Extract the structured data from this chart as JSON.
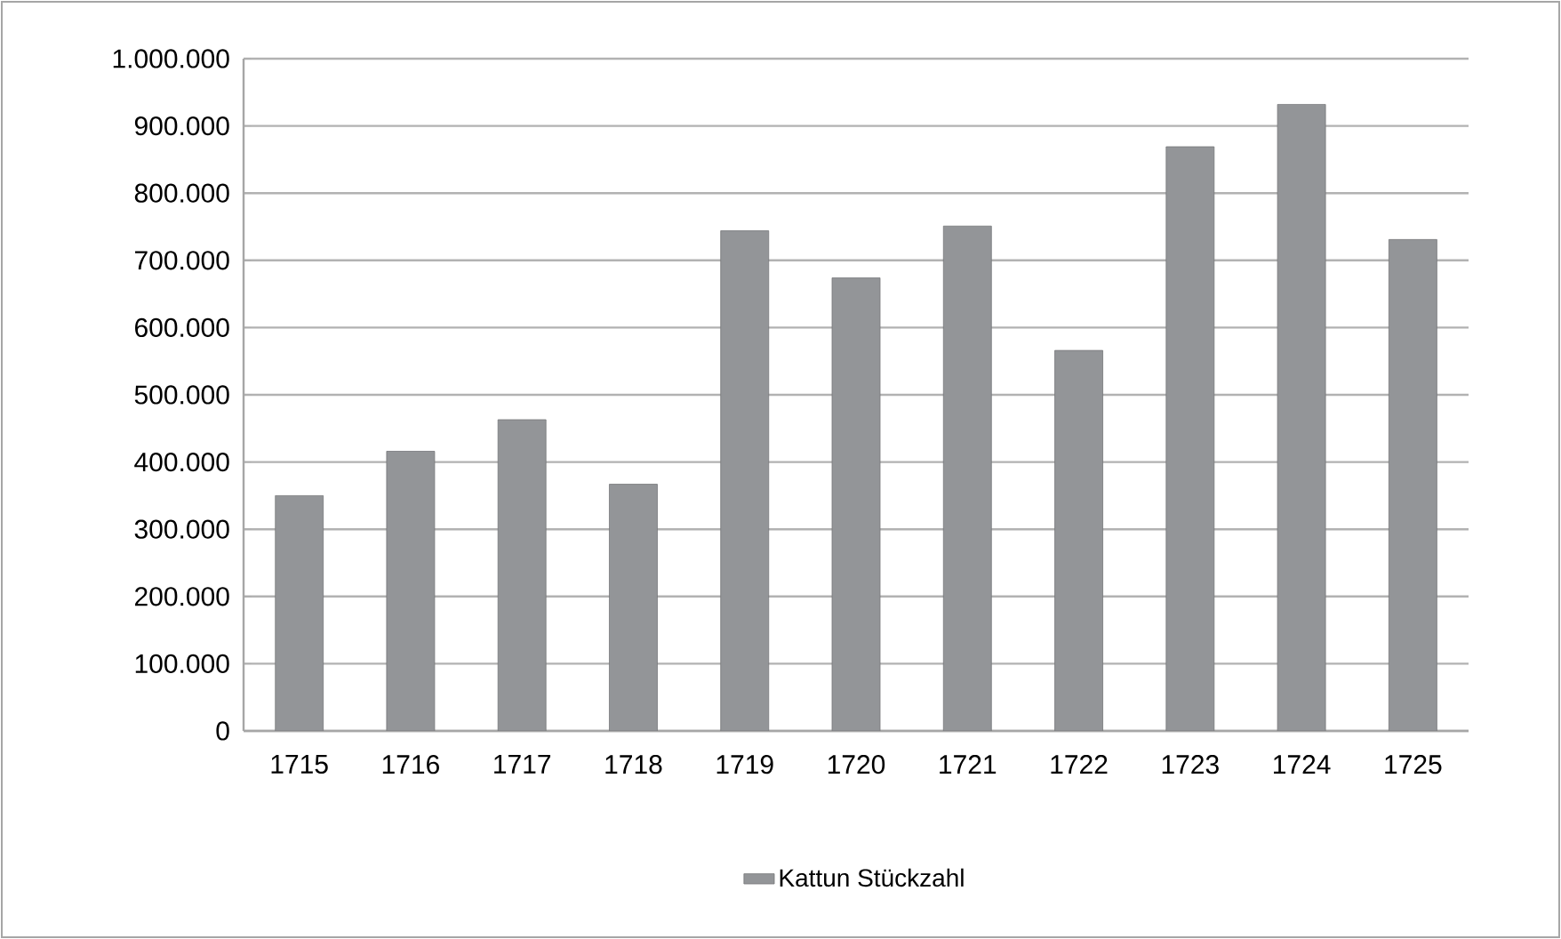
{
  "chart_data": {
    "type": "bar",
    "categories": [
      "1715",
      "1716",
      "1717",
      "1718",
      "1719",
      "1720",
      "1721",
      "1722",
      "1723",
      "1724",
      "1725"
    ],
    "series": [
      {
        "name": "Kattun Stückzahl",
        "color": "#939598",
        "values": [
          350000,
          416000,
          463000,
          367000,
          744000,
          674000,
          751000,
          566000,
          869000,
          932000,
          731000
        ]
      }
    ],
    "ylim": [
      0,
      1000000
    ],
    "yticks": [
      {
        "value": 0,
        "label": "0"
      },
      {
        "value": 100000,
        "label": "100.000"
      },
      {
        "value": 200000,
        "label": "200.000"
      },
      {
        "value": 300000,
        "label": "300.000"
      },
      {
        "value": 400000,
        "label": "400.000"
      },
      {
        "value": 500000,
        "label": "500.000"
      },
      {
        "value": 600000,
        "label": "600.000"
      },
      {
        "value": 700000,
        "label": "700.000"
      },
      {
        "value": 800000,
        "label": "800.000"
      },
      {
        "value": 900000,
        "label": "900.000"
      },
      {
        "value": 1000000,
        "label": "1.000.000"
      }
    ],
    "grid": "y",
    "legend": "bottom"
  }
}
